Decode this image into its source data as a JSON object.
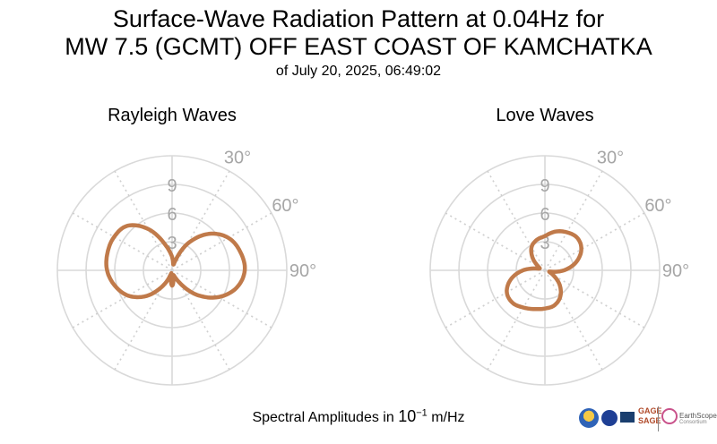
{
  "title": {
    "line1": "Surface-Wave Radiation Pattern at 0.04Hz for",
    "line2": "MW 7.5 (GCMT) OFF EAST COAST OF KAMCHATKA",
    "subtitle": "of July 20, 2025, 06:49:02"
  },
  "footer": {
    "label_prefix": "Spectral Amplitudes in ",
    "base": "10",
    "exponent": "−1",
    "unit": " m/Hz"
  },
  "logos": {
    "gage": "GAGE",
    "sage": "SAGE",
    "earthscope": "EarthScope",
    "consortium": "Consortium"
  },
  "colors": {
    "curve": "#c07a4a",
    "grid": "#d9d9d9",
    "grid_dotted": "#cfcfcf",
    "label": "#a6a6a6"
  },
  "chart_data": [
    {
      "type": "polar-line",
      "title": "Rayleigh Waves",
      "radial_ticks": [
        "3",
        "6",
        "9"
      ],
      "radial_range": [
        0,
        12
      ],
      "angle_ticks": [
        "30°",
        "60°",
        "90°"
      ],
      "angle_zero": "north",
      "angle_direction": "clockwise",
      "series": [
        {
          "angles_deg": [
            0,
            15,
            30,
            45,
            60,
            75,
            90,
            105,
            120,
            135,
            150,
            165,
            180,
            195,
            210,
            225,
            240,
            255,
            270,
            285,
            300,
            315,
            330,
            345
          ],
          "amplitudes": [
            1.4,
            0.7,
            3.2,
            5.4,
            6.8,
            7.4,
            7.6,
            7.0,
            5.6,
            3.6,
            1.4,
            0.5,
            1.6,
            0.3,
            1.8,
            3.8,
            5.3,
            6.2,
            6.8,
            7.0,
            7.0,
            6.6,
            5.0,
            2.8
          ]
        }
      ]
    },
    {
      "type": "polar-line",
      "title": "Love Waves",
      "radial_ticks": [
        "3",
        "6",
        "9"
      ],
      "radial_range": [
        0,
        12
      ],
      "angle_ticks": [
        "30°",
        "60°",
        "90°"
      ],
      "angle_zero": "north",
      "angle_direction": "clockwise",
      "series": [
        {
          "angles_deg": [
            0,
            15,
            30,
            45,
            60,
            75,
            90,
            105,
            120,
            135,
            150,
            165,
            180,
            195,
            210,
            225,
            240,
            255,
            270,
            285,
            300,
            315,
            330,
            345
          ],
          "amplitudes": [
            3.6,
            4.2,
            4.6,
            4.8,
            4.4,
            3.4,
            2.0,
            0.5,
            1.0,
            2.2,
            3.2,
            3.8,
            4.0,
            4.2,
            4.5,
            4.8,
            4.6,
            3.7,
            2.3,
            0.7,
            0.8,
            1.8,
            2.8,
            3.3
          ]
        }
      ]
    }
  ]
}
